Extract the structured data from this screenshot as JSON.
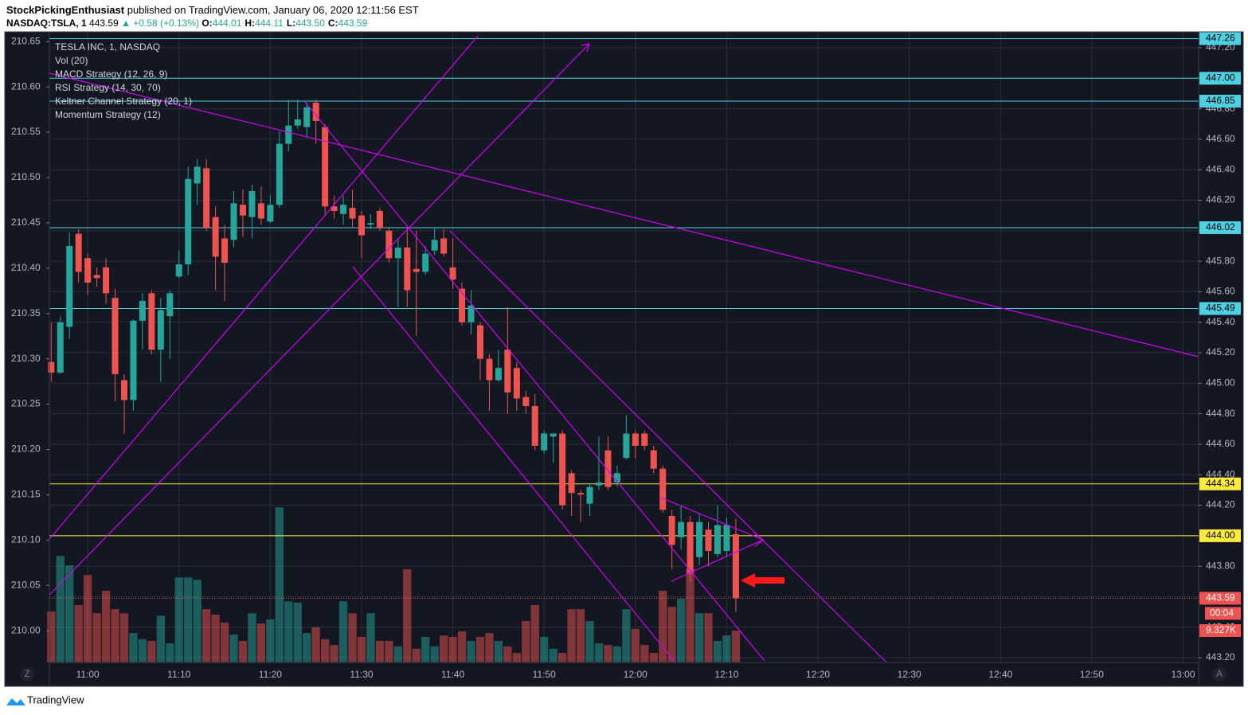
{
  "header": {
    "publisher": "StockPickingEnthusiast",
    "published": "published on TradingView.com, January 06, 2020 12:11:56 EST",
    "symbol": "NASDAQ:TSLA, 1",
    "last": "443.59",
    "change": "▲ +0.58 (+0.13%)",
    "ohlc": [
      {
        "label": "O:",
        "value": "444.01"
      },
      {
        "label": "H:",
        "value": "444.11"
      },
      {
        "label": "L:",
        "value": "443.50"
      },
      {
        "label": "C:",
        "value": "443.59"
      }
    ]
  },
  "legend": [
    "TESLA INC, 1, NASDAQ",
    "Vol (20)",
    "MACD Strategy (12, 26, 9)",
    "RSI Strategy (14, 30, 70)",
    "Keltner Channel Strategy (20, 1)",
    "Momentum Strategy (12)"
  ],
  "footer": {
    "brand": "TradingView",
    "left_button": "Z",
    "right_button": "A"
  },
  "chart_data": {
    "type": "candlestick",
    "up_color": "#26a69a",
    "down_color": "#ef5350",
    "x": [
      "10:56",
      "10:57",
      "10:58",
      "10:59",
      "11:00",
      "11:01",
      "11:02",
      "11:03",
      "11:04",
      "11:05",
      "11:06",
      "11:07",
      "11:08",
      "11:09",
      "11:10",
      "11:11",
      "11:12",
      "11:13",
      "11:14",
      "11:15",
      "11:16",
      "11:17",
      "11:18",
      "11:19",
      "11:20",
      "11:21",
      "11:22",
      "11:23",
      "11:24",
      "11:25",
      "11:26",
      "11:27",
      "11:28",
      "11:29",
      "11:30",
      "11:31",
      "11:32",
      "11:33",
      "11:34",
      "11:35",
      "11:36",
      "11:37",
      "11:38",
      "11:39",
      "11:40",
      "11:41",
      "11:42",
      "11:43",
      "11:44",
      "11:45",
      "11:46",
      "11:47",
      "11:48",
      "11:49",
      "11:50",
      "11:51",
      "11:52",
      "11:53",
      "11:54",
      "11:55",
      "11:56",
      "11:57",
      "11:58",
      "11:59",
      "12:00",
      "12:01",
      "12:02",
      "12:03",
      "12:04",
      "12:05",
      "12:06",
      "12:07",
      "12:08",
      "12:09",
      "12:10",
      "12:11"
    ],
    "open": [
      445.14,
      445.07,
      445.37,
      445.98,
      445.82,
      445.71,
      445.76,
      445.56,
      445.02,
      444.89,
      445.41,
      445.59,
      445.22,
      445.44,
      445.7,
      445.78,
      446.31,
      446.41,
      446.09,
      445.95,
      445.94,
      446.17,
      446.09,
      446.18,
      446.06,
      446.17,
      446.57,
      446.69,
      446.68,
      446.84,
      446.68,
      446.16,
      446.11,
      446.15,
      446.1,
      446.04,
      446.13,
      446.0,
      445.82,
      445.89,
      445.75,
      445.73,
      445.87,
      445.95,
      445.76,
      445.62,
      445.4,
      445.38,
      445.16,
      445.02,
      445.22,
      445.1,
      444.91,
      444.85,
      444.56,
      444.65,
      444.67,
      444.41,
      444.28,
      444.21,
      444.33,
      444.56,
      444.35,
      444.51,
      444.67,
      444.67,
      444.56,
      444.44,
      444.13,
      443.99,
      444.09,
      443.86,
      444.04,
      443.88,
      443.9,
      444.01
    ],
    "high": [
      445.4,
      445.44,
      445.99,
      446.01,
      445.85,
      445.76,
      445.82,
      445.62,
      445.06,
      445.42,
      445.59,
      445.61,
      445.56,
      445.61,
      445.87,
      446.42,
      446.47,
      446.47,
      446.16,
      446.04,
      446.26,
      446.27,
      446.3,
      446.29,
      446.23,
      446.65,
      446.86,
      446.86,
      446.84,
      446.86,
      446.7,
      446.23,
      446.23,
      446.27,
      446.13,
      446.11,
      446.15,
      446.02,
      445.95,
      446.02,
      446.0,
      445.9,
      446.02,
      446.01,
      445.95,
      445.66,
      445.61,
      445.4,
      445.19,
      445.22,
      445.5,
      445.14,
      444.95,
      444.93,
      444.69,
      444.67,
      444.69,
      444.43,
      444.3,
      444.34,
      444.65,
      444.65,
      444.46,
      444.79,
      444.69,
      444.69,
      444.59,
      444.46,
      444.17,
      444.2,
      444.13,
      444.15,
      444.09,
      444.2,
      444.12,
      444.11
    ],
    "low": [
      445.01,
      445.06,
      445.29,
      445.66,
      445.58,
      445.63,
      445.52,
      444.88,
      444.67,
      444.82,
      445.22,
      445.19,
      445.01,
      445.16,
      445.69,
      445.71,
      446.17,
      446.0,
      445.61,
      445.54,
      445.89,
      445.96,
      445.95,
      446.04,
      446.05,
      446.15,
      446.52,
      446.67,
      446.61,
      446.57,
      446.11,
      446.08,
      446.04,
      446.02,
      445.82,
      446.01,
      446.0,
      445.79,
      445.5,
      445.5,
      445.31,
      445.71,
      445.84,
      445.83,
      445.62,
      445.38,
      445.32,
      445.02,
      444.82,
      445.01,
      444.8,
      444.82,
      444.8,
      444.56,
      444.54,
      444.48,
      444.17,
      444.13,
      444.09,
      444.13,
      444.3,
      444.3,
      444.32,
      444.5,
      444.51,
      444.56,
      444.41,
      444.15,
      443.78,
      443.91,
      443.7,
      443.81,
      443.8,
      443.86,
      443.86,
      443.5
    ],
    "close": [
      445.07,
      445.4,
      445.9,
      445.73,
      445.66,
      445.69,
      445.59,
      445.06,
      444.89,
      445.41,
      445.54,
      445.22,
      445.48,
      445.59,
      445.78,
      446.34,
      446.42,
      446.02,
      445.83,
      445.79,
      446.18,
      446.1,
      446.26,
      446.08,
      446.17,
      446.57,
      446.69,
      446.73,
      446.81,
      446.72,
      446.16,
      446.13,
      446.17,
      446.08,
      445.97,
      446.05,
      446.02,
      445.82,
      445.89,
      445.61,
      445.73,
      445.85,
      445.94,
      445.85,
      445.68,
      445.4,
      445.51,
      445.16,
      445.02,
      445.1,
      444.94,
      444.9,
      444.85,
      444.59,
      444.67,
      444.67,
      444.2,
      444.28,
      444.27,
      444.32,
      444.35,
      444.32,
      444.41,
      444.67,
      444.59,
      444.59,
      444.44,
      444.17,
      443.94,
      444.09,
      443.75,
      444.09,
      443.9,
      444.07,
      444.07,
      443.59
    ],
    "volume": [
      14.9,
      31.2,
      28.4,
      16.8,
      25.6,
      14.4,
      21.0,
      15.6,
      14.4,
      8.6,
      6.8,
      6.3,
      13.7,
      5.6,
      24.9,
      24.9,
      24.2,
      15.6,
      14.0,
      11.7,
      8.2,
      6.3,
      14.4,
      11.4,
      12.6,
      45.4,
      17.9,
      17.5,
      8.6,
      10.3,
      6.8,
      5.1,
      17.9,
      14.4,
      7.5,
      14.4,
      6.3,
      6.3,
      4.7,
      27.3,
      4.0,
      7.5,
      4.7,
      7.9,
      7.5,
      9.1,
      6.3,
      7.5,
      8.6,
      6.3,
      4.7,
      2.8,
      12.1,
      16.8,
      7.5,
      4.0,
      2.8,
      15.6,
      15.6,
      12.1,
      5.6,
      5.1,
      4.7,
      15.6,
      9.8,
      5.1,
      2.8,
      21.0,
      16.3,
      18.6,
      27.3,
      14.4,
      14.4,
      6.3,
      7.9,
      9.327
    ],
    "last_volume_label": "9.327K",
    "volume_lim": [
      0,
      184.2
    ],
    "countdown": "00:04",
    "xlim": [
      "10:55:48",
      "13:01:42"
    ],
    "xticks": [
      "11:00",
      "11:10",
      "11:20",
      "11:30",
      "11:40",
      "11:50",
      "12:00",
      "12:10",
      "12:20",
      "12:30",
      "12:40",
      "12:50",
      "13:00"
    ],
    "ylim": [
      443.169,
      447.294
    ],
    "yticks": [
      {
        "value": 443.2,
        "label": "443.20"
      },
      {
        "value": 443.4,
        "label": "443.40"
      },
      {
        "value": 443.6,
        "label": "443.60"
      },
      {
        "value": 443.8,
        "label": "443.80"
      },
      {
        "value": 444,
        "label": "444.00"
      },
      {
        "value": 444.2,
        "label": "444.20"
      },
      {
        "value": 444.4,
        "label": "444.40"
      },
      {
        "value": 444.6,
        "label": "444.60"
      },
      {
        "value": 444.8,
        "label": "444.80"
      },
      {
        "value": 445,
        "label": "445.00"
      },
      {
        "value": 445.2,
        "label": "445.20"
      },
      {
        "value": 445.4,
        "label": "445.40"
      },
      {
        "value": 445.6,
        "label": "445.60"
      },
      {
        "value": 445.8,
        "label": "445.80"
      },
      {
        "value": 446,
        "label": "446.00"
      },
      {
        "value": 446.2,
        "label": "446.20"
      },
      {
        "value": 446.4,
        "label": "446.40"
      },
      {
        "value": 446.6,
        "label": "446.60"
      },
      {
        "value": 446.8,
        "label": "446.80"
      },
      {
        "value": 447,
        "label": "447.00"
      },
      {
        "value": 447.2,
        "label": "447.20"
      }
    ],
    "y2lim": [
      209.965,
      210.659
    ],
    "y2ticks": [
      {
        "value": 210,
        "label": "210.00"
      },
      {
        "value": 210.05,
        "label": "210.05"
      },
      {
        "value": 210.1,
        "label": "210.10"
      },
      {
        "value": 210.15,
        "label": "210.15"
      },
      {
        "value": 210.2,
        "label": "210.20"
      },
      {
        "value": 210.25,
        "label": "210.25"
      },
      {
        "value": 210.3,
        "label": "210.30"
      },
      {
        "value": 210.35,
        "label": "210.35"
      },
      {
        "value": 210.4,
        "label": "210.40"
      },
      {
        "value": 210.45,
        "label": "210.45"
      },
      {
        "value": 210.5,
        "label": "210.50"
      },
      {
        "value": 210.55,
        "label": "210.55"
      },
      {
        "value": 210.6,
        "label": "210.60"
      },
      {
        "value": 210.65,
        "label": "210.65"
      }
    ],
    "grid": true,
    "levels": [
      {
        "value": 447.26,
        "label": "447.26",
        "color": "#4dd0e1"
      },
      {
        "value": 447,
        "label": "447.00",
        "color": "#4dd0e1"
      },
      {
        "value": 446.85,
        "label": "446.85",
        "color": "#4dd0e1"
      },
      {
        "value": 446.02,
        "label": "446.02",
        "color": "#4dd0e1"
      },
      {
        "value": 445.49,
        "label": "445.49",
        "color": "#4dd0e1"
      },
      {
        "value": 444.34,
        "label": "444.34",
        "color": "#ffeb3b"
      },
      {
        "value": 444,
        "label": "444.00",
        "color": "#ffeb3b"
      }
    ]
  }
}
